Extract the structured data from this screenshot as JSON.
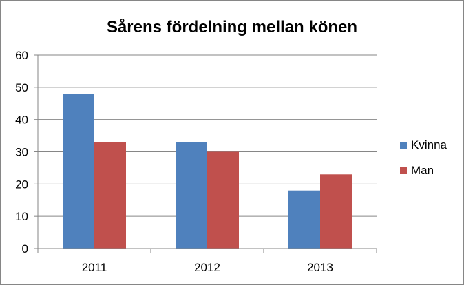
{
  "chart_data": {
    "type": "bar",
    "title": "Sårens fördelning mellan könen",
    "xlabel": "",
    "ylabel": "",
    "categories": [
      "2011",
      "2012",
      "2013"
    ],
    "series": [
      {
        "name": "Kvinna",
        "values": [
          48,
          33,
          18
        ],
        "color": "#4F81BD"
      },
      {
        "name": "Man",
        "values": [
          33,
          30,
          23
        ],
        "color": "#C0504D"
      }
    ],
    "ylim": [
      0,
      60
    ],
    "yticks": [
      0,
      10,
      20,
      30,
      40,
      50,
      60
    ],
    "grid": true,
    "legend_position": "right"
  }
}
